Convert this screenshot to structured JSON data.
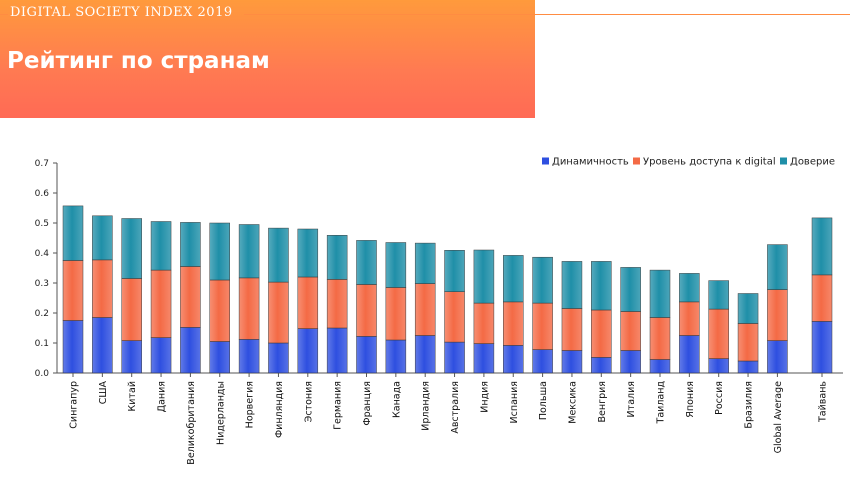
{
  "header": {
    "tag": "DIGITAL SOCIETY INDEX 2019",
    "title": "Рейтинг по странам"
  },
  "colors": {
    "dynamism": "#2e4fe0",
    "access": "#f46a45",
    "trust": "#1f8fa8",
    "header_gradient": [
      "#ff9a3c",
      "#ff6a55"
    ]
  },
  "chart_data": {
    "type": "bar",
    "stacked": true,
    "ylim": [
      0,
      0.7
    ],
    "yticks": [
      "0.0",
      "0.1",
      "0.2",
      "0.3",
      "0.4",
      "0.5",
      "0.6",
      "0.7"
    ],
    "legend_position": "top-right",
    "categories": [
      "Сингапур",
      "США",
      "Китай",
      "Дания",
      "Великобритания",
      "Нидерланды",
      "Норвегия",
      "Финляндия",
      "Эстония",
      "Германия",
      "Франция",
      "Канада",
      "Ирландия",
      "Австралия",
      "Индия",
      "Испания",
      "Польша",
      "Мексика",
      "Венгрия",
      "Италия",
      "Таиланд",
      "Япония",
      "Россия",
      "Бразилия",
      "Global Average",
      "Тайвань"
    ],
    "series": [
      {
        "name": "Динамичность",
        "values": [
          0.175,
          0.185,
          0.108,
          0.118,
          0.152,
          0.105,
          0.112,
          0.1,
          0.148,
          0.15,
          0.122,
          0.11,
          0.125,
          0.103,
          0.098,
          0.092,
          0.078,
          0.075,
          0.052,
          0.075,
          0.045,
          0.125,
          0.048,
          0.04,
          0.108,
          0.172
        ]
      },
      {
        "name": "Уровень доступа к digital",
        "values": [
          0.2,
          0.192,
          0.207,
          0.225,
          0.203,
          0.205,
          0.205,
          0.203,
          0.172,
          0.162,
          0.173,
          0.175,
          0.173,
          0.168,
          0.135,
          0.145,
          0.155,
          0.14,
          0.158,
          0.13,
          0.14,
          0.112,
          0.165,
          0.125,
          0.17,
          0.155
        ]
      },
      {
        "name": "Доверие",
        "values": [
          0.182,
          0.147,
          0.2,
          0.162,
          0.147,
          0.19,
          0.178,
          0.18,
          0.16,
          0.147,
          0.147,
          0.15,
          0.135,
          0.138,
          0.177,
          0.155,
          0.153,
          0.157,
          0.162,
          0.147,
          0.158,
          0.095,
          0.095,
          0.1,
          0.15,
          0.19
        ]
      }
    ]
  }
}
